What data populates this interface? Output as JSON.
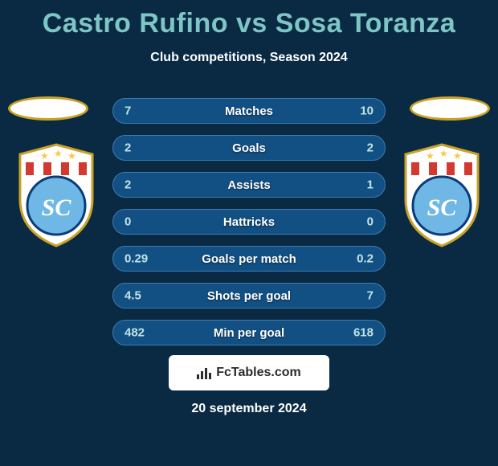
{
  "background_color": "#0a2a43",
  "text_color": "#ffffff",
  "title": "Castro Rufino vs Sosa Toranza",
  "title_color": "#7ec6c6",
  "title_fontsize": 34,
  "subtitle": "Club competitions, Season 2024",
  "subtitle_fontsize": 16,
  "halo": {
    "fill": "#ffffff",
    "stroke": "#c9a227",
    "stroke_width": 3
  },
  "club_badge": {
    "shield_fill": "#ffffff",
    "shield_stroke": "#c9a227",
    "star_color": "#f2c94c",
    "stripe_red": "#d33a2f",
    "stripe_white": "#ffffff",
    "circle_fill": "#6fb8e6",
    "circle_border": "#0a3b7a",
    "letters": "SC",
    "letters_color": "#ffffff"
  },
  "stats": {
    "bar_bg": "#125083",
    "bar_border": "#3d7bb0",
    "label_color": "#ffffff",
    "value_color_left": "#bfe3e3",
    "value_color_right": "#bfe3e3",
    "rows": [
      {
        "left": "7",
        "label": "Matches",
        "right": "10"
      },
      {
        "left": "2",
        "label": "Goals",
        "right": "2"
      },
      {
        "left": "2",
        "label": "Assists",
        "right": "1"
      },
      {
        "left": "0",
        "label": "Hattricks",
        "right": "0"
      },
      {
        "left": "0.29",
        "label": "Goals per match",
        "right": "0.2"
      },
      {
        "left": "4.5",
        "label": "Shots per goal",
        "right": "7"
      },
      {
        "left": "482",
        "label": "Min per goal",
        "right": "618"
      }
    ]
  },
  "watermark": {
    "bg": "#ffffff",
    "text": "FcTables.com",
    "text_color": "#2b2b2b",
    "icon_color": "#2b2b2b"
  },
  "footer_date": "20 september 2024"
}
